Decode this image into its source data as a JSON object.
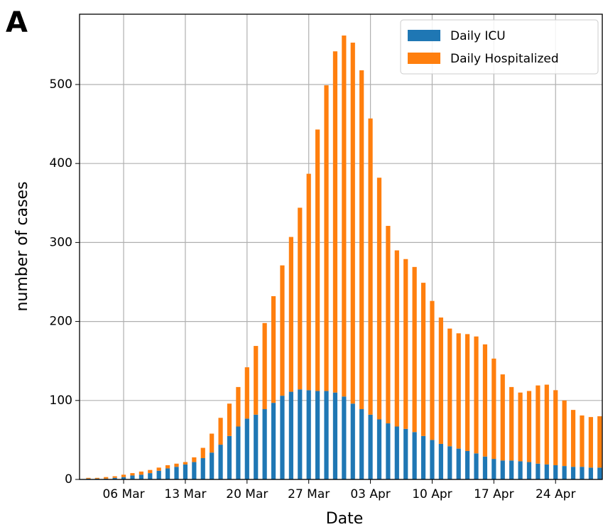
{
  "chart_data": {
    "type": "bar",
    "stacked": true,
    "panel_label": "A",
    "x_label": "Date",
    "y_label": "number of cases",
    "categories": [
      null,
      null,
      null,
      null,
      "06 Mar",
      null,
      null,
      null,
      null,
      null,
      null,
      "13 Mar",
      null,
      null,
      null,
      null,
      null,
      null,
      "20 Mar",
      null,
      null,
      null,
      null,
      null,
      null,
      "27 Mar",
      null,
      null,
      null,
      null,
      null,
      null,
      "03 Apr",
      null,
      null,
      null,
      null,
      null,
      null,
      "10 Apr",
      null,
      null,
      null,
      null,
      null,
      null,
      "17 Apr",
      null,
      null,
      null,
      null,
      null,
      null,
      "24 Apr",
      null,
      null,
      null,
      null,
      null
    ],
    "series": [
      {
        "name": "Daily ICU",
        "color": "#1f77b4",
        "values": [
          1,
          1,
          1,
          2,
          3,
          5,
          6,
          8,
          11,
          14,
          16,
          19,
          22,
          27,
          34,
          44,
          55,
          67,
          77,
          82,
          89,
          97,
          106,
          111,
          114,
          113,
          112,
          112,
          110,
          105,
          96,
          89,
          82,
          76,
          71,
          67,
          64,
          60,
          55,
          50,
          45,
          42,
          39,
          36,
          33,
          29,
          26,
          24,
          24,
          23,
          22,
          20,
          19,
          18,
          17,
          16,
          16,
          15,
          15
        ]
      },
      {
        "name": "Daily Hospitalized",
        "color": "#ff7f0e",
        "values": [
          1,
          1,
          2,
          2,
          3,
          3,
          4,
          4,
          4,
          4,
          4,
          3,
          6,
          13,
          24,
          34,
          41,
          50,
          65,
          87,
          109,
          135,
          165,
          196,
          230,
          274,
          331,
          387,
          432,
          457,
          457,
          429,
          375,
          306,
          250,
          223,
          215,
          209,
          194,
          176,
          160,
          149,
          146,
          148,
          148,
          142,
          127,
          109,
          93,
          87,
          90,
          99,
          101,
          95,
          83,
          72,
          65,
          64,
          65
        ]
      }
    ],
    "ylim": [
      0,
      589
    ],
    "yticks": [
      0,
      100,
      200,
      300,
      400,
      500
    ],
    "grid": true,
    "legend": "upper right"
  }
}
